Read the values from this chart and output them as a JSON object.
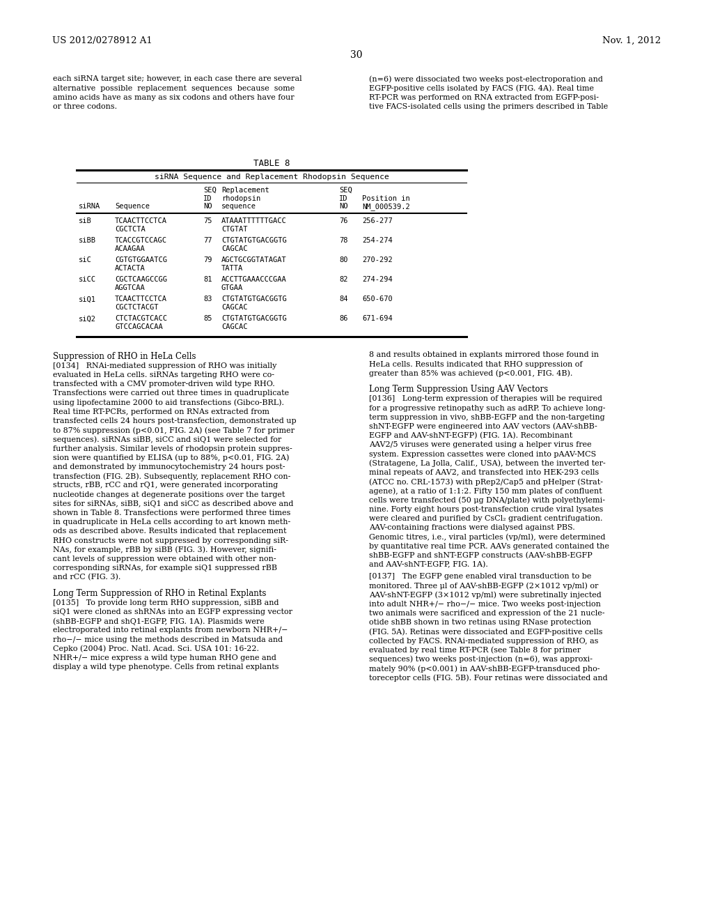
{
  "page_num": "30",
  "patent_left": "US 2012/0278912 A1",
  "patent_right": "Nov. 1, 2012",
  "bg_color": "#ffffff",
  "text_color": "#000000",
  "left_col_text": [
    "each siRNA target site; however, in each case there are several",
    "alternative  possible  replacement  sequences  because  some",
    "amino acids have as many as six codons and others have four",
    "or three codons."
  ],
  "right_col_text": [
    "(n=6) were dissociated two weeks post-electroporation and",
    "EGFP-positive cells isolated by FACS (FIG. 4A). Real time",
    "RT-PCR was performed on RNA extracted from EGFP-posi-",
    "tive FACS-isolated cells using the primers described in Table"
  ],
  "table_title": "TABLE 8",
  "table_subtitle": "siRNA Sequence and Replacement Rhodopsin Sequence",
  "table_rows": [
    [
      "siB",
      "TCAACTTCCTCA",
      "CGCTCTA",
      "75",
      "ATAAATTTTTTGACC",
      "CTGTAT",
      "76",
      "256-277"
    ],
    [
      "siBB",
      "TCACCGTCCAGC",
      "ACAAGAA",
      "77",
      "CTGTATGTGACGGTG",
      "CAGCAC",
      "78",
      "254-274"
    ],
    [
      "siC",
      "CGTGTGGAATCG",
      "ACTACTA",
      "79",
      "AGCTGCGGTATAGAT",
      "TATTA",
      "80",
      "270-292"
    ],
    [
      "siCC",
      "CGCTCAAGCCGG",
      "AGGTCAA",
      "81",
      "ACCTTGAAACCCGAA",
      "GTGAA",
      "82",
      "274-294"
    ],
    [
      "siQ1",
      "TCAACTTCCTCA",
      "CGCTCTACGT",
      "83",
      "CTGTATGTGACGGTG",
      "CAGCAC",
      "84",
      "650-670"
    ],
    [
      "siQ2",
      "CTCTACGTCACC",
      "GTCCAGCACAA",
      "85",
      "CTGTATGTGACGGTG",
      "CAGCAC",
      "86",
      "671-694"
    ]
  ],
  "body_left_para1_head": "Suppression of RHO in HeLa Cells",
  "body_left_para1": [
    "[0134]   RNAi-mediated suppression of RHO was initially",
    "evaluated in HeLa cells. siRNAs targeting RHO were co-",
    "transfected with a CMV promoter-driven wild type RHO.",
    "Transfections were carried out three times in quadruplicate",
    "using lipofectamine 2000 to aid transfections (Gibco-BRL).",
    "Real time RT-PCRs, performed on RNAs extracted from",
    "transfected cells 24 hours post-transfection, demonstrated up",
    "to 87% suppression (p<0.01, FIG. 2A) (see Table 7 for primer",
    "sequences). siRNAs siBB, siCC and siQ1 were selected for",
    "further analysis. Similar levels of rhodopsin protein suppres-",
    "sion were quantified by ELISA (up to 88%, p<0.01, FIG. 2A)",
    "and demonstrated by immunocytochemistry 24 hours post-",
    "transfection (FIG. 2B). Subsequently, replacement RHO con-",
    "structs, rBB, rCC and rQ1, were generated incorporating",
    "nucleotide changes at degenerate positions over the target",
    "sites for siRNAs, siBB, siQ1 and siCC as described above and",
    "shown in Table 8. Transfections were performed three times",
    "in quadruplicate in HeLa cells according to art known meth-",
    "ods as described above. Results indicated that replacement",
    "RHO constructs were not suppressed by corresponding siR-",
    "NAs, for example, rBB by siBB (FIG. 3). However, signifi-",
    "cant levels of suppression were obtained with other non-",
    "corresponding siRNAs, for example siQ1 suppressed rBB",
    "and rCC (FIG. 3)."
  ],
  "body_left_para2_head": "Long Term Suppression of RHO in Retinal Explants",
  "body_left_para2": [
    "[0135]   To provide long term RHO suppression, siBB and",
    "siQ1 were cloned as shRNAs into an EGFP expressing vector",
    "(shBB-EGFP and shQ1-EGFP, FIG. 1A). Plasmids were",
    "electroporated into retinal explants from newborn NHR+/−",
    "rho−/− mice using the methods described in Matsuda and",
    "Cepko (2004) Proc. Natl. Acad. Sci. USA 101: 16-22.",
    "NHR+/− mice express a wild type human RHO gene and",
    "display a wild type phenotype. Cells from retinal explants"
  ],
  "body_right_col1": [
    "8 and results obtained in explants mirrored those found in",
    "HeLa cells. Results indicated that RHO suppression of",
    "greater than 85% was achieved (p<0.001, FIG. 4B)."
  ],
  "body_right_para2_head": "Long Term Suppression Using AAV Vectors",
  "body_right_para2": [
    "[0136]   Long-term expression of therapies will be required",
    "for a progressive retinopathy such as adRP. To achieve long-",
    "term suppression in vivo, shBB-EGFP and the non-targeting",
    "shNT-EGFP were engineered into AAV vectors (AAV-shBB-",
    "EGFP and AAV-shNT-EGFP) (FIG. 1A). Recombinant",
    "AAV2/5 viruses were generated using a helper virus free",
    "system. Expression cassettes were cloned into pAAV-MCS",
    "(Stratagene, La Jolla, Calif., USA), between the inverted ter-",
    "minal repeats of AAV2, and transfected into HEK-293 cells",
    "(ATCC no. CRL-1573) with pRep2/Cap5 and pHelper (Strat-",
    "agene), at a ratio of 1:1:2. Fifty 150 mm plates of confluent",
    "cells were transfected (50 μg DNA/plate) with polyethylemi-",
    "nine. Forty eight hours post-transfection crude viral lysates",
    "were cleared and purified by CsCl₂ gradient centrifugation.",
    "AAV-containing fractions were dialysed against PBS.",
    "Genomic titres, i.e., viral particles (vp/ml), were determined",
    "by quantitative real time PCR. AAVs generated contained the",
    "shBB-EGFP and shNT-EGFP constructs (AAV-shBB-EGFP",
    "and AAV-shNT-EGFP, FIG. 1A)."
  ],
  "body_right_para3": [
    "[0137]   The EGFP gene enabled viral transduction to be",
    "monitored. Three μl of AAV-shBB-EGFP (2×1012 vp/ml) or",
    "AAV-shNT-EGFP (3×1012 vp/ml) were subretinally injected",
    "into adult NHR+/− rho−/− mice. Two weeks post-injection",
    "two animals were sacrificed and expression of the 21 nucle-",
    "otide shBB shown in two retinas using RNase protection",
    "(FIG. 5A). Retinas were dissociated and EGFP-positive cells",
    "collected by FACS. RNAi-mediated suppression of RHO, as",
    "evaluated by real time RT-PCR (see Table 8 for primer",
    "sequences) two weeks post-injection (n=6), was approxi-",
    "mately 90% (p<0.001) in AAV-shBB-EGFP-transduced pho-",
    "toreceptor cells (FIG. 5B). Four retinas were dissociated and"
  ]
}
